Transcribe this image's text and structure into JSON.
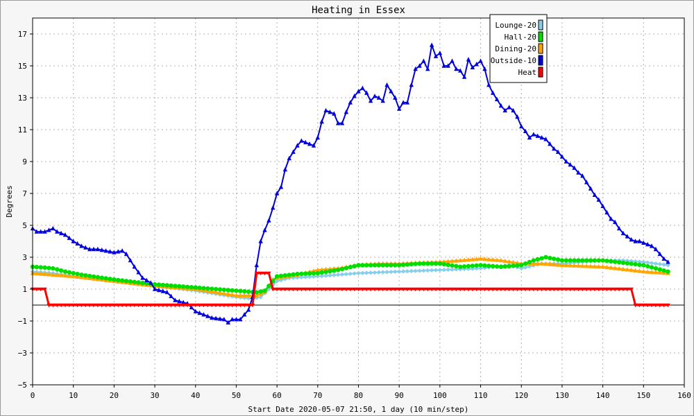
{
  "chart_data": {
    "type": "line",
    "title": "Heating in Essex",
    "xlabel": "Start Date 2020-05-07 21:50, 1 day (10 min/step)",
    "ylabel": "Degrees",
    "xlim": [
      0,
      160
    ],
    "ylim": [
      -5,
      18
    ],
    "x_ticks": [
      0,
      10,
      20,
      30,
      40,
      50,
      60,
      70,
      80,
      90,
      100,
      110,
      120,
      130,
      140,
      150,
      160
    ],
    "y_ticks": [
      -5,
      -3,
      -1,
      1,
      3,
      5,
      7,
      9,
      11,
      13,
      15,
      17
    ],
    "grid": true,
    "legend_position": "top-right",
    "baseline_y": 0,
    "series": [
      {
        "name": "Lounge-20",
        "color": "#87CEEB",
        "marker": "diamond",
        "points": [
          [
            0,
            2.1
          ],
          [
            5,
            2.0
          ],
          [
            10,
            1.8
          ],
          [
            20,
            1.5
          ],
          [
            30,
            1.2
          ],
          [
            40,
            0.9
          ],
          [
            45,
            0.7
          ],
          [
            50,
            0.5
          ],
          [
            54,
            0.4
          ],
          [
            56,
            0.5
          ],
          [
            58,
            1.0
          ],
          [
            60,
            1.5
          ],
          [
            63,
            1.7
          ],
          [
            70,
            1.8
          ],
          [
            80,
            2.0
          ],
          [
            90,
            2.1
          ],
          [
            100,
            2.2
          ],
          [
            110,
            2.3
          ],
          [
            117,
            2.5
          ],
          [
            120,
            2.3
          ],
          [
            125,
            2.6
          ],
          [
            130,
            2.6
          ],
          [
            135,
            2.7
          ],
          [
            140,
            2.8
          ],
          [
            145,
            2.8
          ],
          [
            150,
            2.7
          ],
          [
            156,
            2.5
          ]
        ]
      },
      {
        "name": "Hall-20",
        "color": "#00DD00",
        "marker": "circle",
        "points": [
          [
            0,
            2.4
          ],
          [
            3,
            2.35
          ],
          [
            5,
            2.3
          ],
          [
            8,
            2.1
          ],
          [
            12,
            1.9
          ],
          [
            20,
            1.6
          ],
          [
            30,
            1.3
          ],
          [
            40,
            1.1
          ],
          [
            45,
            1.0
          ],
          [
            50,
            0.9
          ],
          [
            55,
            0.8
          ],
          [
            57,
            0.9
          ],
          [
            59,
            1.5
          ],
          [
            60,
            1.8
          ],
          [
            65,
            1.95
          ],
          [
            70,
            2.0
          ],
          [
            75,
            2.2
          ],
          [
            80,
            2.5
          ],
          [
            85,
            2.5
          ],
          [
            90,
            2.5
          ],
          [
            95,
            2.6
          ],
          [
            100,
            2.6
          ],
          [
            105,
            2.4
          ],
          [
            110,
            2.5
          ],
          [
            115,
            2.4
          ],
          [
            120,
            2.5
          ],
          [
            123,
            2.8
          ],
          [
            126,
            3.0
          ],
          [
            130,
            2.8
          ],
          [
            140,
            2.8
          ],
          [
            150,
            2.5
          ],
          [
            156,
            2.1
          ]
        ]
      },
      {
        "name": "Dining-20",
        "color": "#FFA500",
        "marker": "triangle",
        "points": [
          [
            0,
            2.0
          ],
          [
            5,
            1.9
          ],
          [
            10,
            1.8
          ],
          [
            20,
            1.5
          ],
          [
            30,
            1.2
          ],
          [
            40,
            1.0
          ],
          [
            45,
            0.8
          ],
          [
            50,
            0.6
          ],
          [
            55,
            0.6
          ],
          [
            57,
            0.8
          ],
          [
            59,
            1.6
          ],
          [
            60,
            1.7
          ],
          [
            65,
            1.9
          ],
          [
            70,
            2.2
          ],
          [
            75,
            2.3
          ],
          [
            80,
            2.5
          ],
          [
            85,
            2.6
          ],
          [
            90,
            2.6
          ],
          [
            100,
            2.7
          ],
          [
            105,
            2.8
          ],
          [
            110,
            2.9
          ],
          [
            115,
            2.8
          ],
          [
            120,
            2.6
          ],
          [
            125,
            2.6
          ],
          [
            130,
            2.5
          ],
          [
            140,
            2.4
          ],
          [
            150,
            2.1
          ],
          [
            156,
            2.0
          ]
        ]
      },
      {
        "name": "Outside-10",
        "color": "#0000DD",
        "marker": "triangle",
        "points": [
          [
            0,
            4.8
          ],
          [
            1,
            4.6
          ],
          [
            3,
            4.6
          ],
          [
            5,
            4.8
          ],
          [
            6,
            4.6
          ],
          [
            8,
            4.4
          ],
          [
            10,
            4.0
          ],
          [
            12,
            3.7
          ],
          [
            14,
            3.5
          ],
          [
            16,
            3.5
          ],
          [
            18,
            3.4
          ],
          [
            20,
            3.3
          ],
          [
            22,
            3.4
          ],
          [
            23,
            3.2
          ],
          [
            25,
            2.4
          ],
          [
            27,
            1.7
          ],
          [
            29,
            1.4
          ],
          [
            30,
            1.0
          ],
          [
            33,
            0.8
          ],
          [
            35,
            0.3
          ],
          [
            38,
            0.1
          ],
          [
            40,
            -0.4
          ],
          [
            42,
            -0.6
          ],
          [
            44,
            -0.8
          ],
          [
            47,
            -0.9
          ],
          [
            48,
            -1.1
          ],
          [
            49,
            -0.9
          ],
          [
            51,
            -0.9
          ],
          [
            52,
            -0.6
          ],
          [
            53,
            -0.3
          ],
          [
            54,
            0.5
          ],
          [
            55,
            2.5
          ],
          [
            56,
            4.0
          ],
          [
            57,
            4.7
          ],
          [
            58,
            5.3
          ],
          [
            59,
            6.1
          ],
          [
            60,
            7.0
          ],
          [
            61,
            7.4
          ],
          [
            62,
            8.5
          ],
          [
            63,
            9.2
          ],
          [
            64,
            9.6
          ],
          [
            65,
            10.0
          ],
          [
            66,
            10.3
          ],
          [
            67,
            10.2
          ],
          [
            69,
            10.0
          ],
          [
            70,
            10.5
          ],
          [
            71,
            11.5
          ],
          [
            72,
            12.2
          ],
          [
            73,
            12.1
          ],
          [
            74,
            12.0
          ],
          [
            75,
            11.4
          ],
          [
            76,
            11.4
          ],
          [
            77,
            12.1
          ],
          [
            78,
            12.7
          ],
          [
            79,
            13.1
          ],
          [
            80,
            13.4
          ],
          [
            81,
            13.6
          ],
          [
            82,
            13.3
          ],
          [
            83,
            12.8
          ],
          [
            84,
            13.1
          ],
          [
            85,
            13.0
          ],
          [
            86,
            12.8
          ],
          [
            87,
            13.8
          ],
          [
            88,
            13.4
          ],
          [
            89,
            13.0
          ],
          [
            90,
            12.3
          ],
          [
            91,
            12.7
          ],
          [
            92,
            12.7
          ],
          [
            93,
            13.8
          ],
          [
            94,
            14.8
          ],
          [
            95,
            15.0
          ],
          [
            96,
            15.3
          ],
          [
            97,
            14.8
          ],
          [
            98,
            16.3
          ],
          [
            99,
            15.6
          ],
          [
            100,
            15.8
          ],
          [
            101,
            15.0
          ],
          [
            102,
            15.0
          ],
          [
            103,
            15.3
          ],
          [
            104,
            14.8
          ],
          [
            105,
            14.7
          ],
          [
            106,
            14.3
          ],
          [
            107,
            15.4
          ],
          [
            108,
            14.9
          ],
          [
            109,
            15.1
          ],
          [
            110,
            15.3
          ],
          [
            111,
            14.8
          ],
          [
            112,
            13.8
          ],
          [
            113,
            13.3
          ],
          [
            114,
            12.9
          ],
          [
            115,
            12.5
          ],
          [
            116,
            12.2
          ],
          [
            117,
            12.4
          ],
          [
            118,
            12.2
          ],
          [
            119,
            11.8
          ],
          [
            120,
            11.2
          ],
          [
            121,
            10.9
          ],
          [
            122,
            10.5
          ],
          [
            123,
            10.7
          ],
          [
            124,
            10.6
          ],
          [
            125,
            10.5
          ],
          [
            126,
            10.4
          ],
          [
            127,
            10.1
          ],
          [
            128,
            9.8
          ],
          [
            129,
            9.6
          ],
          [
            130,
            9.3
          ],
          [
            131,
            9.0
          ],
          [
            132,
            8.8
          ],
          [
            133,
            8.6
          ],
          [
            134,
            8.3
          ],
          [
            135,
            8.1
          ],
          [
            136,
            7.7
          ],
          [
            137,
            7.3
          ],
          [
            138,
            6.9
          ],
          [
            139,
            6.6
          ],
          [
            140,
            6.2
          ],
          [
            141,
            5.8
          ],
          [
            142,
            5.4
          ],
          [
            143,
            5.2
          ],
          [
            144,
            4.8
          ],
          [
            145,
            4.5
          ],
          [
            146,
            4.3
          ],
          [
            147,
            4.1
          ],
          [
            148,
            4.0
          ],
          [
            149,
            4.0
          ],
          [
            150,
            3.9
          ],
          [
            151,
            3.8
          ],
          [
            152,
            3.7
          ],
          [
            153,
            3.5
          ],
          [
            154,
            3.2
          ],
          [
            155,
            2.9
          ],
          [
            156,
            2.7
          ]
        ]
      },
      {
        "name": "Heat",
        "color": "#FF0000",
        "marker": "triangle-down",
        "points": [
          [
            0,
            1.0
          ],
          [
            3,
            1.0
          ],
          [
            4,
            0
          ],
          [
            54,
            0
          ],
          [
            55,
            2.0
          ],
          [
            58,
            2.0
          ],
          [
            59,
            1.0
          ],
          [
            147,
            1.0
          ],
          [
            148,
            0
          ],
          [
            156,
            0
          ]
        ]
      }
    ]
  }
}
